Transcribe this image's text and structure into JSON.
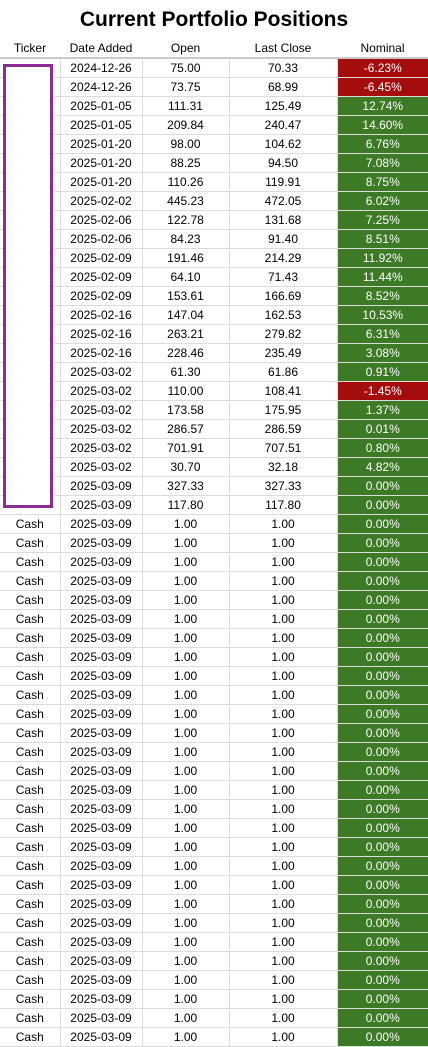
{
  "title": "Current Portfolio Positions",
  "headers": [
    "Ticker",
    "Date Added",
    "Open",
    "Last Close",
    "Nominal"
  ],
  "rows": [
    {
      "ticker": "",
      "date": "2024-12-26",
      "open": "75.00",
      "close": "70.33",
      "nominal": "-6.23%",
      "status": "neg"
    },
    {
      "ticker": "",
      "date": "2024-12-26",
      "open": "73.75",
      "close": "68.99",
      "nominal": "-6.45%",
      "status": "neg"
    },
    {
      "ticker": "",
      "date": "2025-01-05",
      "open": "111.31",
      "close": "125.49",
      "nominal": "12.74%",
      "status": "pos"
    },
    {
      "ticker": "",
      "date": "2025-01-05",
      "open": "209.84",
      "close": "240.47",
      "nominal": "14.60%",
      "status": "pos"
    },
    {
      "ticker": "",
      "date": "2025-01-20",
      "open": "98.00",
      "close": "104.62",
      "nominal": "6.76%",
      "status": "pos"
    },
    {
      "ticker": "",
      "date": "2025-01-20",
      "open": "88.25",
      "close": "94.50",
      "nominal": "7.08%",
      "status": "pos"
    },
    {
      "ticker": "",
      "date": "2025-01-20",
      "open": "110.26",
      "close": "119.91",
      "nominal": "8.75%",
      "status": "pos"
    },
    {
      "ticker": "",
      "date": "2025-02-02",
      "open": "445.23",
      "close": "472.05",
      "nominal": "6.02%",
      "status": "pos"
    },
    {
      "ticker": "",
      "date": "2025-02-06",
      "open": "122.78",
      "close": "131.68",
      "nominal": "7.25%",
      "status": "pos"
    },
    {
      "ticker": "",
      "date": "2025-02-06",
      "open": "84.23",
      "close": "91.40",
      "nominal": "8.51%",
      "status": "pos"
    },
    {
      "ticker": "",
      "date": "2025-02-09",
      "open": "191.46",
      "close": "214.29",
      "nominal": "11.92%",
      "status": "pos"
    },
    {
      "ticker": "",
      "date": "2025-02-09",
      "open": "64.10",
      "close": "71.43",
      "nominal": "11.44%",
      "status": "pos"
    },
    {
      "ticker": "",
      "date": "2025-02-09",
      "open": "153.61",
      "close": "166.69",
      "nominal": "8.52%",
      "status": "pos"
    },
    {
      "ticker": "",
      "date": "2025-02-16",
      "open": "147.04",
      "close": "162.53",
      "nominal": "10.53%",
      "status": "pos"
    },
    {
      "ticker": "",
      "date": "2025-02-16",
      "open": "263.21",
      "close": "279.82",
      "nominal": "6.31%",
      "status": "pos"
    },
    {
      "ticker": "",
      "date": "2025-02-16",
      "open": "228.46",
      "close": "235.49",
      "nominal": "3.08%",
      "status": "pos"
    },
    {
      "ticker": "",
      "date": "2025-03-02",
      "open": "61.30",
      "close": "61.86",
      "nominal": "0.91%",
      "status": "pos"
    },
    {
      "ticker": "",
      "date": "2025-03-02",
      "open": "110.00",
      "close": "108.41",
      "nominal": "-1.45%",
      "status": "neg"
    },
    {
      "ticker": "",
      "date": "2025-03-02",
      "open": "173.58",
      "close": "175.95",
      "nominal": "1.37%",
      "status": "pos"
    },
    {
      "ticker": "",
      "date": "2025-03-02",
      "open": "286.57",
      "close": "286.59",
      "nominal": "0.01%",
      "status": "pos"
    },
    {
      "ticker": "",
      "date": "2025-03-02",
      "open": "701.91",
      "close": "707.51",
      "nominal": "0.80%",
      "status": "pos"
    },
    {
      "ticker": "",
      "date": "2025-03-02",
      "open": "30.70",
      "close": "32.18",
      "nominal": "4.82%",
      "status": "pos"
    },
    {
      "ticker": "",
      "date": "2025-03-09",
      "open": "327.33",
      "close": "327.33",
      "nominal": "0.00%",
      "status": "pos"
    },
    {
      "ticker": "",
      "date": "2025-03-09",
      "open": "117.80",
      "close": "117.80",
      "nominal": "0.00%",
      "status": "pos"
    },
    {
      "ticker": "Cash",
      "date": "2025-03-09",
      "open": "1.00",
      "close": "1.00",
      "nominal": "0.00%",
      "status": "pos"
    },
    {
      "ticker": "Cash",
      "date": "2025-03-09",
      "open": "1.00",
      "close": "1.00",
      "nominal": "0.00%",
      "status": "pos"
    },
    {
      "ticker": "Cash",
      "date": "2025-03-09",
      "open": "1.00",
      "close": "1.00",
      "nominal": "0.00%",
      "status": "pos"
    },
    {
      "ticker": "Cash",
      "date": "2025-03-09",
      "open": "1.00",
      "close": "1.00",
      "nominal": "0.00%",
      "status": "pos"
    },
    {
      "ticker": "Cash",
      "date": "2025-03-09",
      "open": "1.00",
      "close": "1.00",
      "nominal": "0.00%",
      "status": "pos"
    },
    {
      "ticker": "Cash",
      "date": "2025-03-09",
      "open": "1.00",
      "close": "1.00",
      "nominal": "0.00%",
      "status": "pos"
    },
    {
      "ticker": "Cash",
      "date": "2025-03-09",
      "open": "1.00",
      "close": "1.00",
      "nominal": "0.00%",
      "status": "pos"
    },
    {
      "ticker": "Cash",
      "date": "2025-03-09",
      "open": "1.00",
      "close": "1.00",
      "nominal": "0.00%",
      "status": "pos"
    },
    {
      "ticker": "Cash",
      "date": "2025-03-09",
      "open": "1.00",
      "close": "1.00",
      "nominal": "0.00%",
      "status": "pos"
    },
    {
      "ticker": "Cash",
      "date": "2025-03-09",
      "open": "1.00",
      "close": "1.00",
      "nominal": "0.00%",
      "status": "pos"
    },
    {
      "ticker": "Cash",
      "date": "2025-03-09",
      "open": "1.00",
      "close": "1.00",
      "nominal": "0.00%",
      "status": "pos"
    },
    {
      "ticker": "Cash",
      "date": "2025-03-09",
      "open": "1.00",
      "close": "1.00",
      "nominal": "0.00%",
      "status": "pos"
    },
    {
      "ticker": "Cash",
      "date": "2025-03-09",
      "open": "1.00",
      "close": "1.00",
      "nominal": "0.00%",
      "status": "pos"
    },
    {
      "ticker": "Cash",
      "date": "2025-03-09",
      "open": "1.00",
      "close": "1.00",
      "nominal": "0.00%",
      "status": "pos"
    },
    {
      "ticker": "Cash",
      "date": "2025-03-09",
      "open": "1.00",
      "close": "1.00",
      "nominal": "0.00%",
      "status": "pos"
    },
    {
      "ticker": "Cash",
      "date": "2025-03-09",
      "open": "1.00",
      "close": "1.00",
      "nominal": "0.00%",
      "status": "pos"
    },
    {
      "ticker": "Cash",
      "date": "2025-03-09",
      "open": "1.00",
      "close": "1.00",
      "nominal": "0.00%",
      "status": "pos"
    },
    {
      "ticker": "Cash",
      "date": "2025-03-09",
      "open": "1.00",
      "close": "1.00",
      "nominal": "0.00%",
      "status": "pos"
    },
    {
      "ticker": "Cash",
      "date": "2025-03-09",
      "open": "1.00",
      "close": "1.00",
      "nominal": "0.00%",
      "status": "pos"
    },
    {
      "ticker": "Cash",
      "date": "2025-03-09",
      "open": "1.00",
      "close": "1.00",
      "nominal": "0.00%",
      "status": "pos"
    },
    {
      "ticker": "Cash",
      "date": "2025-03-09",
      "open": "1.00",
      "close": "1.00",
      "nominal": "0.00%",
      "status": "pos"
    },
    {
      "ticker": "Cash",
      "date": "2025-03-09",
      "open": "1.00",
      "close": "1.00",
      "nominal": "0.00%",
      "status": "pos"
    },
    {
      "ticker": "Cash",
      "date": "2025-03-09",
      "open": "1.00",
      "close": "1.00",
      "nominal": "0.00%",
      "status": "pos"
    },
    {
      "ticker": "Cash",
      "date": "2025-03-09",
      "open": "1.00",
      "close": "1.00",
      "nominal": "0.00%",
      "status": "pos"
    },
    {
      "ticker": "Cash",
      "date": "2025-03-09",
      "open": "1.00",
      "close": "1.00",
      "nominal": "0.00%",
      "status": "pos"
    },
    {
      "ticker": "Cash",
      "date": "2025-03-09",
      "open": "1.00",
      "close": "1.00",
      "nominal": "0.00%",
      "status": "pos"
    },
    {
      "ticker": "Cash",
      "date": "2025-03-09",
      "open": "1.00",
      "close": "1.00",
      "nominal": "0.00%",
      "status": "pos"
    },
    {
      "ticker": "Cash",
      "date": "2025-03-09",
      "open": "1.00",
      "close": "1.00",
      "nominal": "0.00%",
      "status": "pos"
    }
  ],
  "colors": {
    "positive": "#3c7a26",
    "negative": "#a50d0d",
    "redaction_border": "#8b2d91"
  }
}
